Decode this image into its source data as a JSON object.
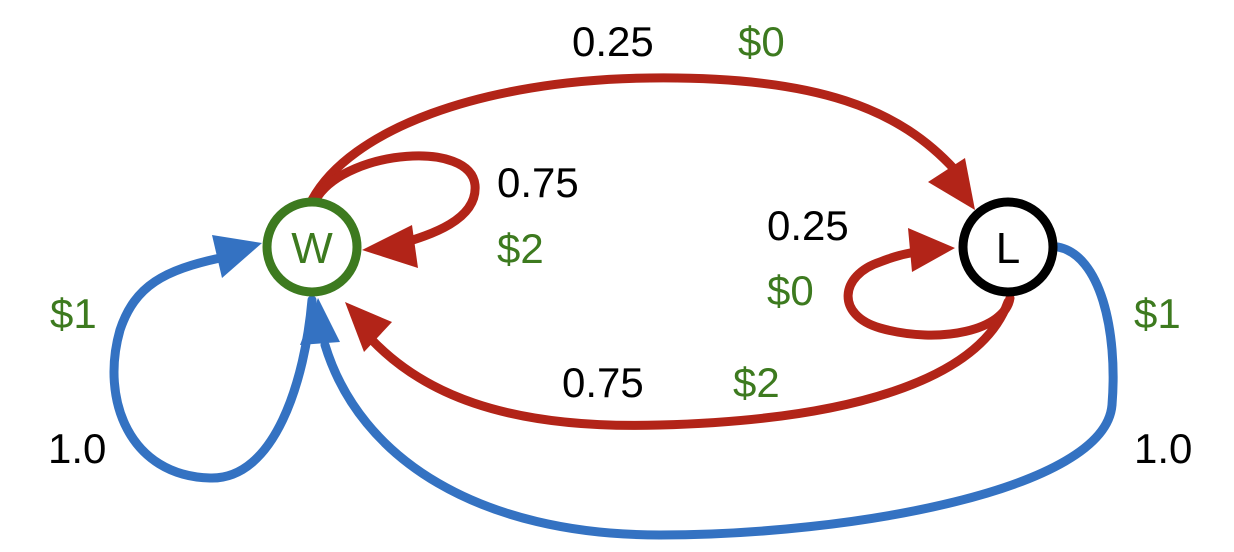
{
  "colors": {
    "green": "#3d7a1f",
    "red": "#b22418",
    "blue": "#3472c2",
    "black": "#000000"
  },
  "nodes": {
    "w": {
      "label": "W"
    },
    "l": {
      "label": "L"
    }
  },
  "edges": {
    "w_to_l": {
      "prob": "0.25",
      "reward": "$0"
    },
    "w_self": {
      "prob": "0.75",
      "reward": "$2"
    },
    "l_self": {
      "prob": "0.25",
      "reward": "$0"
    },
    "l_to_w": {
      "prob": "0.75",
      "reward": "$2"
    },
    "w_self_blue": {
      "prob": "1.0",
      "reward": "$1"
    },
    "l_to_w_blue": {
      "prob": "1.0",
      "reward": "$1"
    }
  }
}
